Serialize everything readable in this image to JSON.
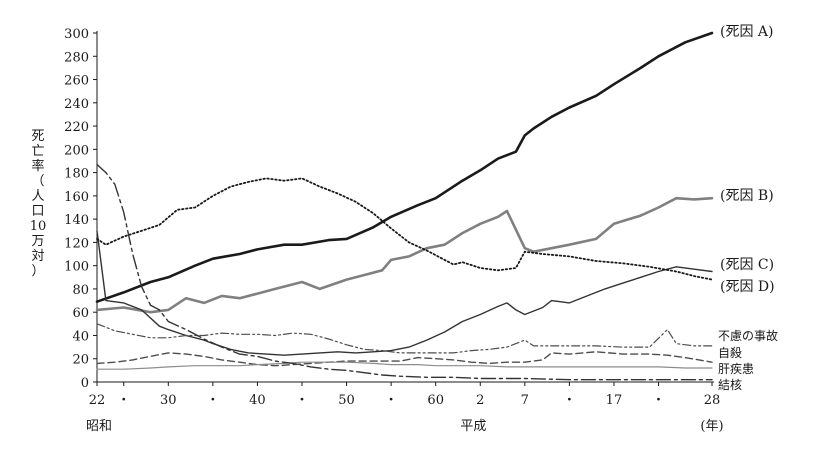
{
  "chart_data": {
    "type": "line",
    "ylabel": "死亡率（人口10万対）",
    "ylim": [
      0,
      300
    ],
    "xlim": [
      1947,
      2016
    ],
    "y_ticks": [
      0,
      20,
      40,
      60,
      80,
      100,
      120,
      140,
      160,
      180,
      200,
      220,
      240,
      260,
      280,
      300
    ],
    "x_ticks": [
      {
        "label": "22",
        "x": 1947
      },
      {
        "label": "・",
        "x": 1950
      },
      {
        "label": "30",
        "x": 1955
      },
      {
        "label": "・",
        "x": 1960
      },
      {
        "label": "40",
        "x": 1965
      },
      {
        "label": "・",
        "x": 1970
      },
      {
        "label": "50",
        "x": 1975
      },
      {
        "label": "・",
        "x": 1980
      },
      {
        "label": "60",
        "x": 1985
      },
      {
        "label": "2",
        "x": 1990
      },
      {
        "label": "7",
        "x": 1995
      },
      {
        "label": "・",
        "x": 2000
      },
      {
        "label": "17",
        "x": 2005
      },
      {
        "label": "・",
        "x": 2010
      },
      {
        "label": "28",
        "x": 2016
      }
    ],
    "era_labels": {
      "showa": "昭和",
      "heisei": "平成",
      "year_unit": "(年)"
    },
    "series": [
      {
        "name": "(死因 A)",
        "style": "solid-thick",
        "color": "#1a1a1a",
        "points": [
          [
            1947,
            69
          ],
          [
            1950,
            77
          ],
          [
            1953,
            86
          ],
          [
            1955,
            90
          ],
          [
            1958,
            100
          ],
          [
            1960,
            106
          ],
          [
            1963,
            110
          ],
          [
            1965,
            114
          ],
          [
            1968,
            118
          ],
          [
            1970,
            118
          ],
          [
            1973,
            122
          ],
          [
            1975,
            123
          ],
          [
            1978,
            133
          ],
          [
            1980,
            142
          ],
          [
            1983,
            152
          ],
          [
            1985,
            158
          ],
          [
            1988,
            173
          ],
          [
            1990,
            182
          ],
          [
            1992,
            192
          ],
          [
            1994,
            198
          ],
          [
            1995,
            212
          ],
          [
            1996,
            218
          ],
          [
            1998,
            228
          ],
          [
            2000,
            236
          ],
          [
            2003,
            246
          ],
          [
            2005,
            256
          ],
          [
            2008,
            270
          ],
          [
            2010,
            280
          ],
          [
            2013,
            292
          ],
          [
            2016,
            300
          ]
        ]
      },
      {
        "name": "(死因 B)",
        "style": "solid-gray",
        "color": "#808080",
        "points": [
          [
            1947,
            62
          ],
          [
            1950,
            64
          ],
          [
            1953,
            60
          ],
          [
            1955,
            62
          ],
          [
            1957,
            72
          ],
          [
            1959,
            68
          ],
          [
            1961,
            74
          ],
          [
            1963,
            72
          ],
          [
            1965,
            76
          ],
          [
            1967,
            80
          ],
          [
            1970,
            86
          ],
          [
            1972,
            80
          ],
          [
            1975,
            88
          ],
          [
            1977,
            92
          ],
          [
            1979,
            96
          ],
          [
            1980,
            105
          ],
          [
            1982,
            108
          ],
          [
            1984,
            115
          ],
          [
            1986,
            118
          ],
          [
            1988,
            128
          ],
          [
            1990,
            136
          ],
          [
            1992,
            142
          ],
          [
            1993,
            147
          ],
          [
            1995,
            115
          ],
          [
            1996,
            112
          ],
          [
            1998,
            115
          ],
          [
            2000,
            118
          ],
          [
            2003,
            123
          ],
          [
            2005,
            136
          ],
          [
            2008,
            143
          ],
          [
            2010,
            150
          ],
          [
            2012,
            158
          ],
          [
            2014,
            157
          ],
          [
            2016,
            158
          ]
        ]
      },
      {
        "name": "(死因 C)",
        "style": "solid-thin",
        "color": "#333333",
        "points": [
          [
            1947,
            130
          ],
          [
            1948,
            70
          ],
          [
            1950,
            68
          ],
          [
            1952,
            62
          ],
          [
            1954,
            48
          ],
          [
            1955,
            45
          ],
          [
            1957,
            40
          ],
          [
            1959,
            36
          ],
          [
            1960,
            33
          ],
          [
            1962,
            28
          ],
          [
            1964,
            25
          ],
          [
            1966,
            24
          ],
          [
            1968,
            23
          ],
          [
            1970,
            24
          ],
          [
            1972,
            25
          ],
          [
            1974,
            26
          ],
          [
            1976,
            25
          ],
          [
            1978,
            26
          ],
          [
            1980,
            27
          ],
          [
            1982,
            30
          ],
          [
            1984,
            36
          ],
          [
            1986,
            43
          ],
          [
            1988,
            52
          ],
          [
            1990,
            58
          ],
          [
            1992,
            65
          ],
          [
            1993,
            68
          ],
          [
            1994,
            62
          ],
          [
            1995,
            58
          ],
          [
            1997,
            64
          ],
          [
            1998,
            70
          ],
          [
            2000,
            68
          ],
          [
            2002,
            74
          ],
          [
            2004,
            80
          ],
          [
            2006,
            85
          ],
          [
            2008,
            90
          ],
          [
            2010,
            95
          ],
          [
            2012,
            99
          ],
          [
            2014,
            97
          ],
          [
            2016,
            95
          ]
        ]
      },
      {
        "name": "(死因 D)",
        "style": "dotted",
        "color": "#1a1a1a",
        "points": [
          [
            1947,
            123
          ],
          [
            1948,
            118
          ],
          [
            1950,
            125
          ],
          [
            1952,
            130
          ],
          [
            1954,
            135
          ],
          [
            1956,
            148
          ],
          [
            1958,
            150
          ],
          [
            1960,
            160
          ],
          [
            1962,
            168
          ],
          [
            1964,
            172
          ],
          [
            1966,
            175
          ],
          [
            1968,
            173
          ],
          [
            1970,
            175
          ],
          [
            1972,
            168
          ],
          [
            1974,
            162
          ],
          [
            1976,
            155
          ],
          [
            1978,
            145
          ],
          [
            1980,
            132
          ],
          [
            1982,
            120
          ],
          [
            1984,
            113
          ],
          [
            1986,
            105
          ],
          [
            1987,
            101
          ],
          [
            1988,
            103
          ],
          [
            1990,
            98
          ],
          [
            1992,
            96
          ],
          [
            1994,
            98
          ],
          [
            1995,
            112
          ],
          [
            1997,
            110
          ],
          [
            2000,
            108
          ],
          [
            2003,
            104
          ],
          [
            2006,
            102
          ],
          [
            2009,
            99
          ],
          [
            2012,
            95
          ],
          [
            2014,
            91
          ],
          [
            2016,
            88
          ]
        ]
      },
      {
        "name": "不慮の事故",
        "style": "dash-dot-dot",
        "color": "#4d4d4d",
        "points": [
          [
            1947,
            50
          ],
          [
            1949,
            44
          ],
          [
            1951,
            41
          ],
          [
            1953,
            38
          ],
          [
            1955,
            38
          ],
          [
            1957,
            40
          ],
          [
            1959,
            40
          ],
          [
            1961,
            42
          ],
          [
            1963,
            41
          ],
          [
            1965,
            41
          ],
          [
            1967,
            40
          ],
          [
            1969,
            42
          ],
          [
            1971,
            41
          ],
          [
            1973,
            37
          ],
          [
            1975,
            32
          ],
          [
            1977,
            28
          ],
          [
            1979,
            27
          ],
          [
            1981,
            25
          ],
          [
            1983,
            25
          ],
          [
            1985,
            25
          ],
          [
            1987,
            25
          ],
          [
            1989,
            27
          ],
          [
            1991,
            28
          ],
          [
            1993,
            30
          ],
          [
            1995,
            36
          ],
          [
            1996,
            31
          ],
          [
            1998,
            31
          ],
          [
            2000,
            31
          ],
          [
            2003,
            31
          ],
          [
            2006,
            30
          ],
          [
            2009,
            30
          ],
          [
            2011,
            45
          ],
          [
            2012,
            33
          ],
          [
            2014,
            31
          ],
          [
            2016,
            31
          ]
        ]
      },
      {
        "name": "自殺",
        "style": "dashed",
        "color": "#4d4d4d",
        "points": [
          [
            1947,
            16
          ],
          [
            1949,
            17
          ],
          [
            1951,
            19
          ],
          [
            1953,
            22
          ],
          [
            1955,
            25
          ],
          [
            1957,
            24
          ],
          [
            1959,
            22
          ],
          [
            1961,
            19
          ],
          [
            1963,
            17
          ],
          [
            1965,
            15
          ],
          [
            1967,
            14
          ],
          [
            1969,
            15
          ],
          [
            1971,
            16
          ],
          [
            1973,
            17
          ],
          [
            1975,
            18
          ],
          [
            1977,
            18
          ],
          [
            1979,
            18
          ],
          [
            1981,
            18
          ],
          [
            1983,
            21
          ],
          [
            1985,
            20
          ],
          [
            1987,
            19
          ],
          [
            1989,
            17
          ],
          [
            1991,
            16
          ],
          [
            1993,
            17
          ],
          [
            1995,
            17
          ],
          [
            1997,
            19
          ],
          [
            1998,
            25
          ],
          [
            2000,
            24
          ],
          [
            2003,
            26
          ],
          [
            2006,
            24
          ],
          [
            2009,
            24
          ],
          [
            2011,
            23
          ],
          [
            2013,
            21
          ],
          [
            2016,
            17
          ]
        ]
      },
      {
        "name": "肝疾患",
        "style": "solid-gray-thin",
        "color": "#8c8c8c",
        "points": [
          [
            1947,
            11
          ],
          [
            1950,
            11
          ],
          [
            1953,
            12
          ],
          [
            1955,
            13
          ],
          [
            1958,
            14
          ],
          [
            1960,
            14
          ],
          [
            1963,
            14
          ],
          [
            1965,
            15
          ],
          [
            1968,
            16
          ],
          [
            1970,
            17
          ],
          [
            1973,
            17
          ],
          [
            1975,
            17
          ],
          [
            1978,
            16
          ],
          [
            1980,
            15
          ],
          [
            1983,
            15
          ],
          [
            1985,
            14
          ],
          [
            1988,
            14
          ],
          [
            1990,
            14
          ],
          [
            1993,
            13
          ],
          [
            1995,
            13
          ],
          [
            1998,
            13
          ],
          [
            2000,
            13
          ],
          [
            2003,
            13
          ],
          [
            2006,
            13
          ],
          [
            2010,
            13
          ],
          [
            2013,
            12
          ],
          [
            2016,
            12
          ]
        ]
      },
      {
        "name": "結核",
        "style": "long-dash-dot",
        "color": "#333333",
        "points": [
          [
            1947,
            187
          ],
          [
            1948,
            180
          ],
          [
            1949,
            170
          ],
          [
            1950,
            146
          ],
          [
            1951,
            110
          ],
          [
            1952,
            82
          ],
          [
            1953,
            66
          ],
          [
            1954,
            62
          ],
          [
            1955,
            52
          ],
          [
            1957,
            45
          ],
          [
            1959,
            37
          ],
          [
            1961,
            30
          ],
          [
            1963,
            24
          ],
          [
            1965,
            22
          ],
          [
            1967,
            18
          ],
          [
            1969,
            16
          ],
          [
            1971,
            13
          ],
          [
            1973,
            11
          ],
          [
            1975,
            10
          ],
          [
            1977,
            8
          ],
          [
            1979,
            6
          ],
          [
            1981,
            5
          ],
          [
            1984,
            4
          ],
          [
            1987,
            4
          ],
          [
            1990,
            3
          ],
          [
            1995,
            3
          ],
          [
            2000,
            2
          ],
          [
            2005,
            2
          ],
          [
            2010,
            2
          ],
          [
            2016,
            2
          ]
        ]
      }
    ]
  }
}
